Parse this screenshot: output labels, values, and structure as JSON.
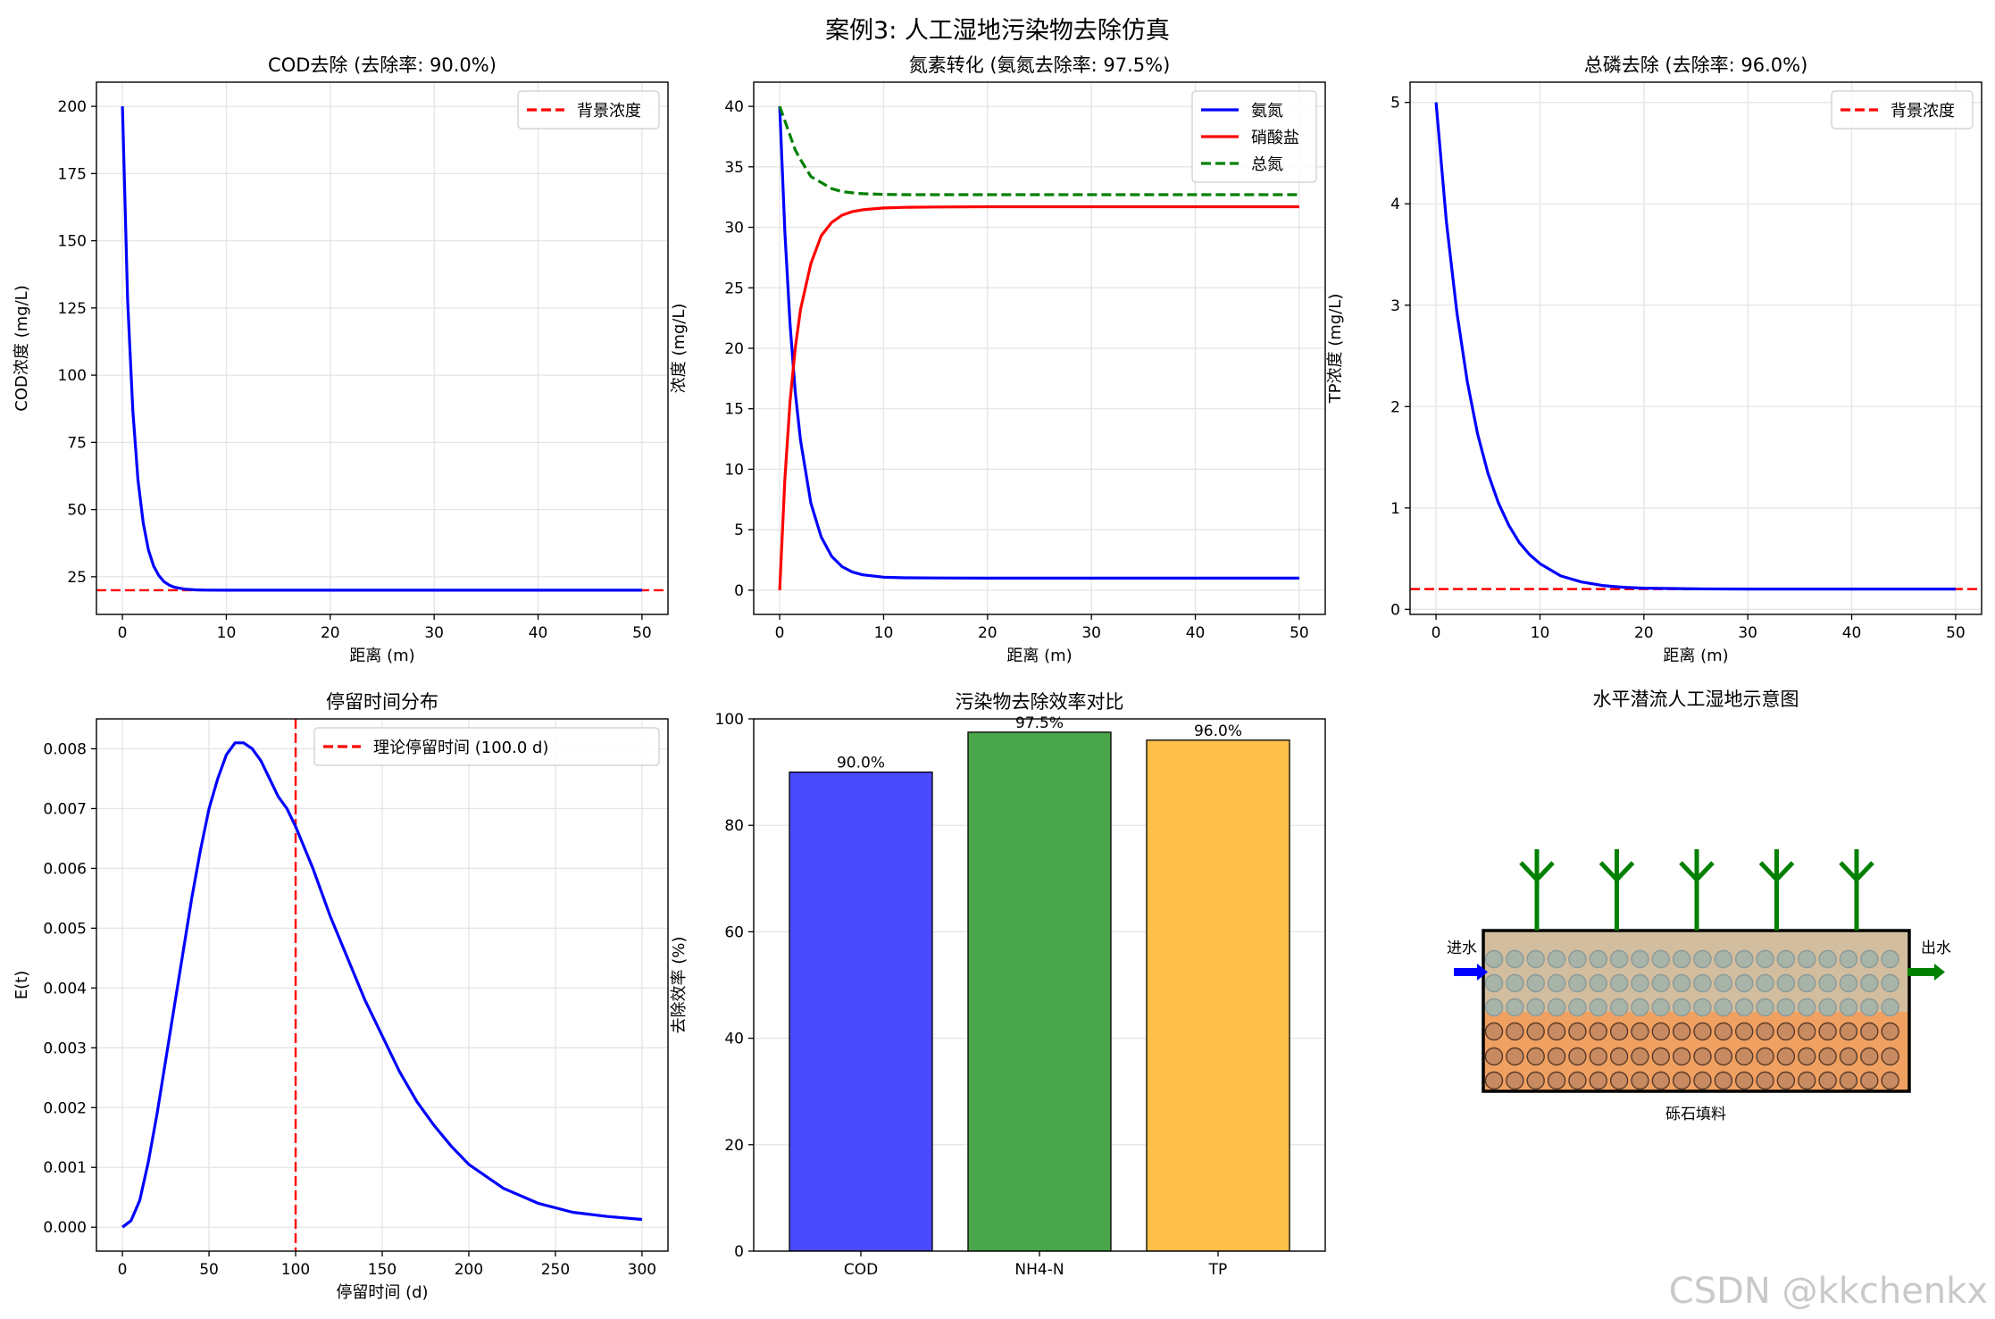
{
  "figure": {
    "suptitle": "案例3: 人工湿地污染物去除仿真",
    "watermark": "CSDN @kkchenkx"
  },
  "chart_data": [
    {
      "id": "cod",
      "type": "line",
      "title": "COD去除 (去除率: 90.0%)",
      "xlabel": "距离 (m)",
      "ylabel": "COD浓度 (mg/L)",
      "xlim": [
        -2.5,
        52.5
      ],
      "ylim": [
        11,
        209
      ],
      "xticks": [
        0,
        10,
        20,
        30,
        40,
        50
      ],
      "yticks": [
        25,
        50,
        75,
        100,
        125,
        150,
        175,
        200
      ],
      "grid": true,
      "legend_loc": "upper right",
      "x": [
        0,
        0.5,
        1,
        1.5,
        2,
        2.5,
        3,
        3.5,
        4,
        4.5,
        5,
        6,
        7,
        8,
        10,
        15,
        20,
        30,
        40,
        50
      ],
      "series": [
        {
          "name": "",
          "color": "#0000ff",
          "style": "solid",
          "values": [
            200,
            128,
            87,
            61,
            45,
            35,
            29,
            25.5,
            23.2,
            21.9,
            21.1,
            20.4,
            20.15,
            20.05,
            20,
            20,
            20,
            20,
            20,
            20
          ]
        }
      ],
      "hlines": [
        {
          "name": "背景浓度",
          "y": 20,
          "color": "#ff0000",
          "style": "dashed"
        }
      ],
      "legend": [
        {
          "label": "背景浓度",
          "color": "#ff0000",
          "style": "dashed"
        }
      ]
    },
    {
      "id": "nitrogen",
      "type": "line",
      "title": "氮素转化 (氨氮去除率: 97.5%)",
      "xlabel": "距离 (m)",
      "ylabel": "浓度 (mg/L)",
      "xlim": [
        -2.5,
        52.5
      ],
      "ylim": [
        -2,
        42
      ],
      "xticks": [
        0,
        10,
        20,
        30,
        40,
        50
      ],
      "yticks": [
        0,
        5,
        10,
        15,
        20,
        25,
        30,
        35,
        40
      ],
      "grid": true,
      "legend_loc": "upper right",
      "x": [
        0,
        0.5,
        1,
        1.5,
        2,
        3,
        4,
        5,
        6,
        7,
        8,
        10,
        12,
        15,
        20,
        30,
        40,
        50
      ],
      "series": [
        {
          "name": "氨氮",
          "color": "#0000ff",
          "style": "solid",
          "values": [
            40,
            29.6,
            22,
            16.4,
            12.4,
            7.2,
            4.4,
            2.8,
            1.95,
            1.5,
            1.27,
            1.08,
            1.03,
            1.01,
            1,
            1,
            1,
            1
          ]
        },
        {
          "name": "硝酸盐",
          "color": "#ff0000",
          "style": "solid",
          "values": [
            0,
            9.2,
            15.6,
            20,
            23.2,
            27,
            29.3,
            30.4,
            31,
            31.3,
            31.45,
            31.6,
            31.65,
            31.68,
            31.7,
            31.7,
            31.7,
            31.7
          ]
        },
        {
          "name": "总氮",
          "color": "#008000",
          "style": "dashed",
          "values": [
            40,
            38.8,
            37.6,
            36.4,
            35.6,
            34.2,
            33.7,
            33.2,
            32.95,
            32.85,
            32.78,
            32.72,
            32.7,
            32.7,
            32.7,
            32.7,
            32.7,
            32.7
          ]
        }
      ],
      "legend": [
        {
          "label": "氨氮",
          "color": "#0000ff",
          "style": "solid"
        },
        {
          "label": "硝酸盐",
          "color": "#ff0000",
          "style": "solid"
        },
        {
          "label": "总氮",
          "color": "#008000",
          "style": "dashed"
        }
      ]
    },
    {
      "id": "tp",
      "type": "line",
      "title": "总磷去除 (去除率: 96.0%)",
      "xlabel": "距离 (m)",
      "ylabel": "TP浓度 (mg/L)",
      "xlim": [
        -2.5,
        52.5
      ],
      "ylim": [
        -0.05,
        5.2
      ],
      "xticks": [
        0,
        10,
        20,
        30,
        40,
        50
      ],
      "yticks": [
        0,
        1,
        2,
        3,
        4,
        5
      ],
      "grid": true,
      "legend_loc": "upper right",
      "x": [
        0,
        1,
        2,
        3,
        4,
        5,
        6,
        7,
        8,
        9,
        10,
        12,
        14,
        16,
        18,
        20,
        25,
        30,
        40,
        50
      ],
      "series": [
        {
          "name": "",
          "color": "#0000ff",
          "style": "solid",
          "values": [
            5,
            3.82,
            2.93,
            2.25,
            1.73,
            1.34,
            1.05,
            0.83,
            0.66,
            0.54,
            0.45,
            0.33,
            0.27,
            0.235,
            0.218,
            0.209,
            0.202,
            0.2,
            0.2,
            0.2
          ]
        }
      ],
      "hlines": [
        {
          "name": "背景浓度",
          "y": 0.2,
          "color": "#ff0000",
          "style": "dashed"
        }
      ],
      "legend": [
        {
          "label": "背景浓度",
          "color": "#ff0000",
          "style": "dashed"
        }
      ]
    },
    {
      "id": "rtd",
      "type": "line",
      "title": "停留时间分布",
      "xlabel": "停留时间 (d)",
      "ylabel": "E(t)",
      "xlim": [
        -15,
        315
      ],
      "ylim": [
        -0.0004,
        0.0085
      ],
      "xticks": [
        0,
        50,
        100,
        150,
        200,
        250,
        300
      ],
      "yticks": [
        0.0,
        0.001,
        0.002,
        0.003,
        0.004,
        0.005,
        0.006,
        0.007,
        0.008
      ],
      "ytick_labels": [
        "0.000",
        "0.001",
        "0.002",
        "0.003",
        "0.004",
        "0.005",
        "0.006",
        "0.007",
        "0.008"
      ],
      "grid": true,
      "legend_loc": "upper right",
      "x": [
        0,
        5,
        10,
        15,
        20,
        25,
        30,
        35,
        40,
        45,
        50,
        55,
        60,
        65,
        70,
        75,
        80,
        85,
        90,
        95,
        100,
        110,
        120,
        130,
        140,
        150,
        160,
        170,
        180,
        190,
        200,
        220,
        240,
        260,
        280,
        300
      ],
      "series": [
        {
          "name": "",
          "color": "#0000ff",
          "style": "solid",
          "values": [
            0,
            0.00011,
            0.00045,
            0.0011,
            0.0019,
            0.0028,
            0.0037,
            0.0046,
            0.0055,
            0.0063,
            0.007,
            0.0075,
            0.0079,
            0.0081,
            0.0081,
            0.008,
            0.0078,
            0.0075,
            0.0072,
            0.007,
            0.0067,
            0.006,
            0.0052,
            0.0045,
            0.0038,
            0.0032,
            0.0026,
            0.0021,
            0.0017,
            0.00135,
            0.00105,
            0.00065,
            0.0004,
            0.00025,
            0.00018,
            0.00013
          ]
        }
      ],
      "vlines": [
        {
          "name": "理论停留时间 (100.0 d)",
          "x": 100,
          "color": "#ff0000",
          "style": "dashed"
        }
      ],
      "legend": [
        {
          "label": "理论停留时间 (100.0 d)",
          "color": "#ff0000",
          "style": "dashed"
        }
      ]
    },
    {
      "id": "efficiency",
      "type": "bar",
      "title": "污染物去除效率对比",
      "xlabel": "",
      "ylabel": "去除效率 (%)",
      "ylim": [
        0,
        100
      ],
      "yticks": [
        0,
        20,
        40,
        60,
        80,
        100
      ],
      "grid": true,
      "categories": [
        "COD",
        "NH4-N",
        "TP"
      ],
      "values": [
        90.0,
        97.5,
        96.0
      ],
      "value_labels": [
        "90.0%",
        "97.5%",
        "96.0%"
      ],
      "colors": [
        "#4a4aff",
        "#4aa64a",
        "#ffc04a"
      ]
    }
  ],
  "schematic": {
    "title": "水平潜流人工湿地示意图",
    "inlet_label": "进水",
    "outlet_label": "出水",
    "media_label": "砾石填料",
    "plant_count": 5,
    "colors": {
      "upper": "#d2bd9e",
      "lower": "#f0a060",
      "gravel_upper": "#a8b4a8",
      "gravel_lower": "#c88a60",
      "plant": "#008000",
      "inlet": "#0000ff",
      "outlet": "#008000"
    }
  }
}
